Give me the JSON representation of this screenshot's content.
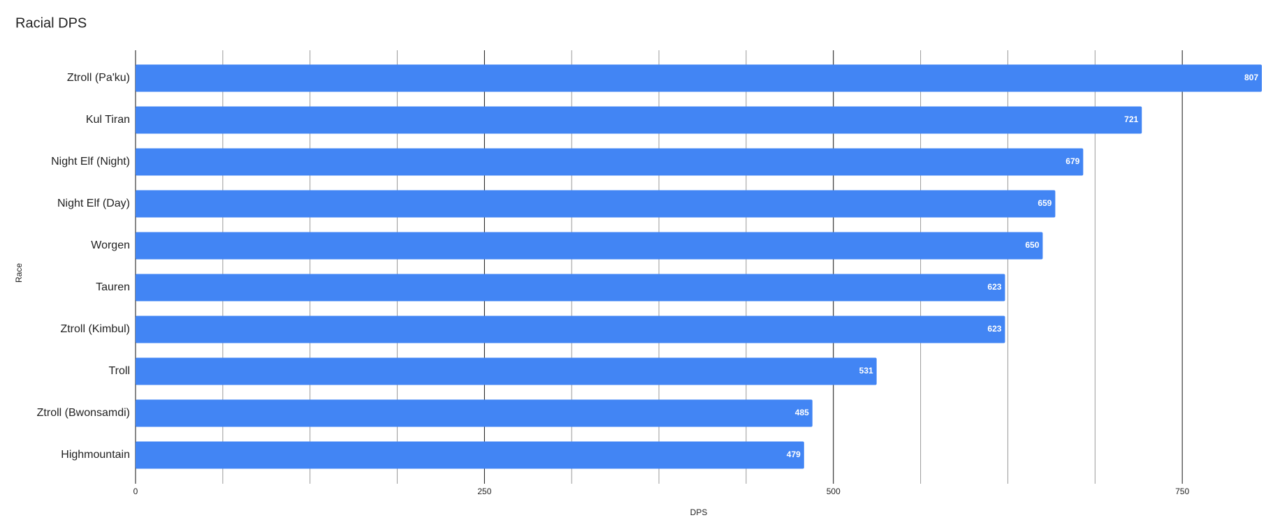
{
  "chart_data": {
    "type": "bar",
    "orientation": "horizontal",
    "title": "Racial DPS",
    "x_label": "DPS",
    "y_label": "Race",
    "categories": [
      "Ztroll (Pa'ku)",
      "Kul Tiran",
      "Night Elf (Night)",
      "Night Elf (Day)",
      "Worgen",
      "Tauren",
      "Ztroll (Kimbul)",
      "Troll",
      "Ztroll (Bwonsamdi)",
      "Highmountain"
    ],
    "values": [
      807,
      721,
      679,
      659,
      650,
      623,
      623,
      531,
      485,
      479
    ],
    "color": "#4285f4",
    "xlim": [
      0,
      807
    ],
    "xticks": [
      0,
      250,
      500,
      750
    ],
    "minor_xticks": [
      62.5,
      125,
      187.5,
      312.5,
      375,
      437.5,
      562.5,
      625,
      687.5
    ],
    "grid": true
  }
}
